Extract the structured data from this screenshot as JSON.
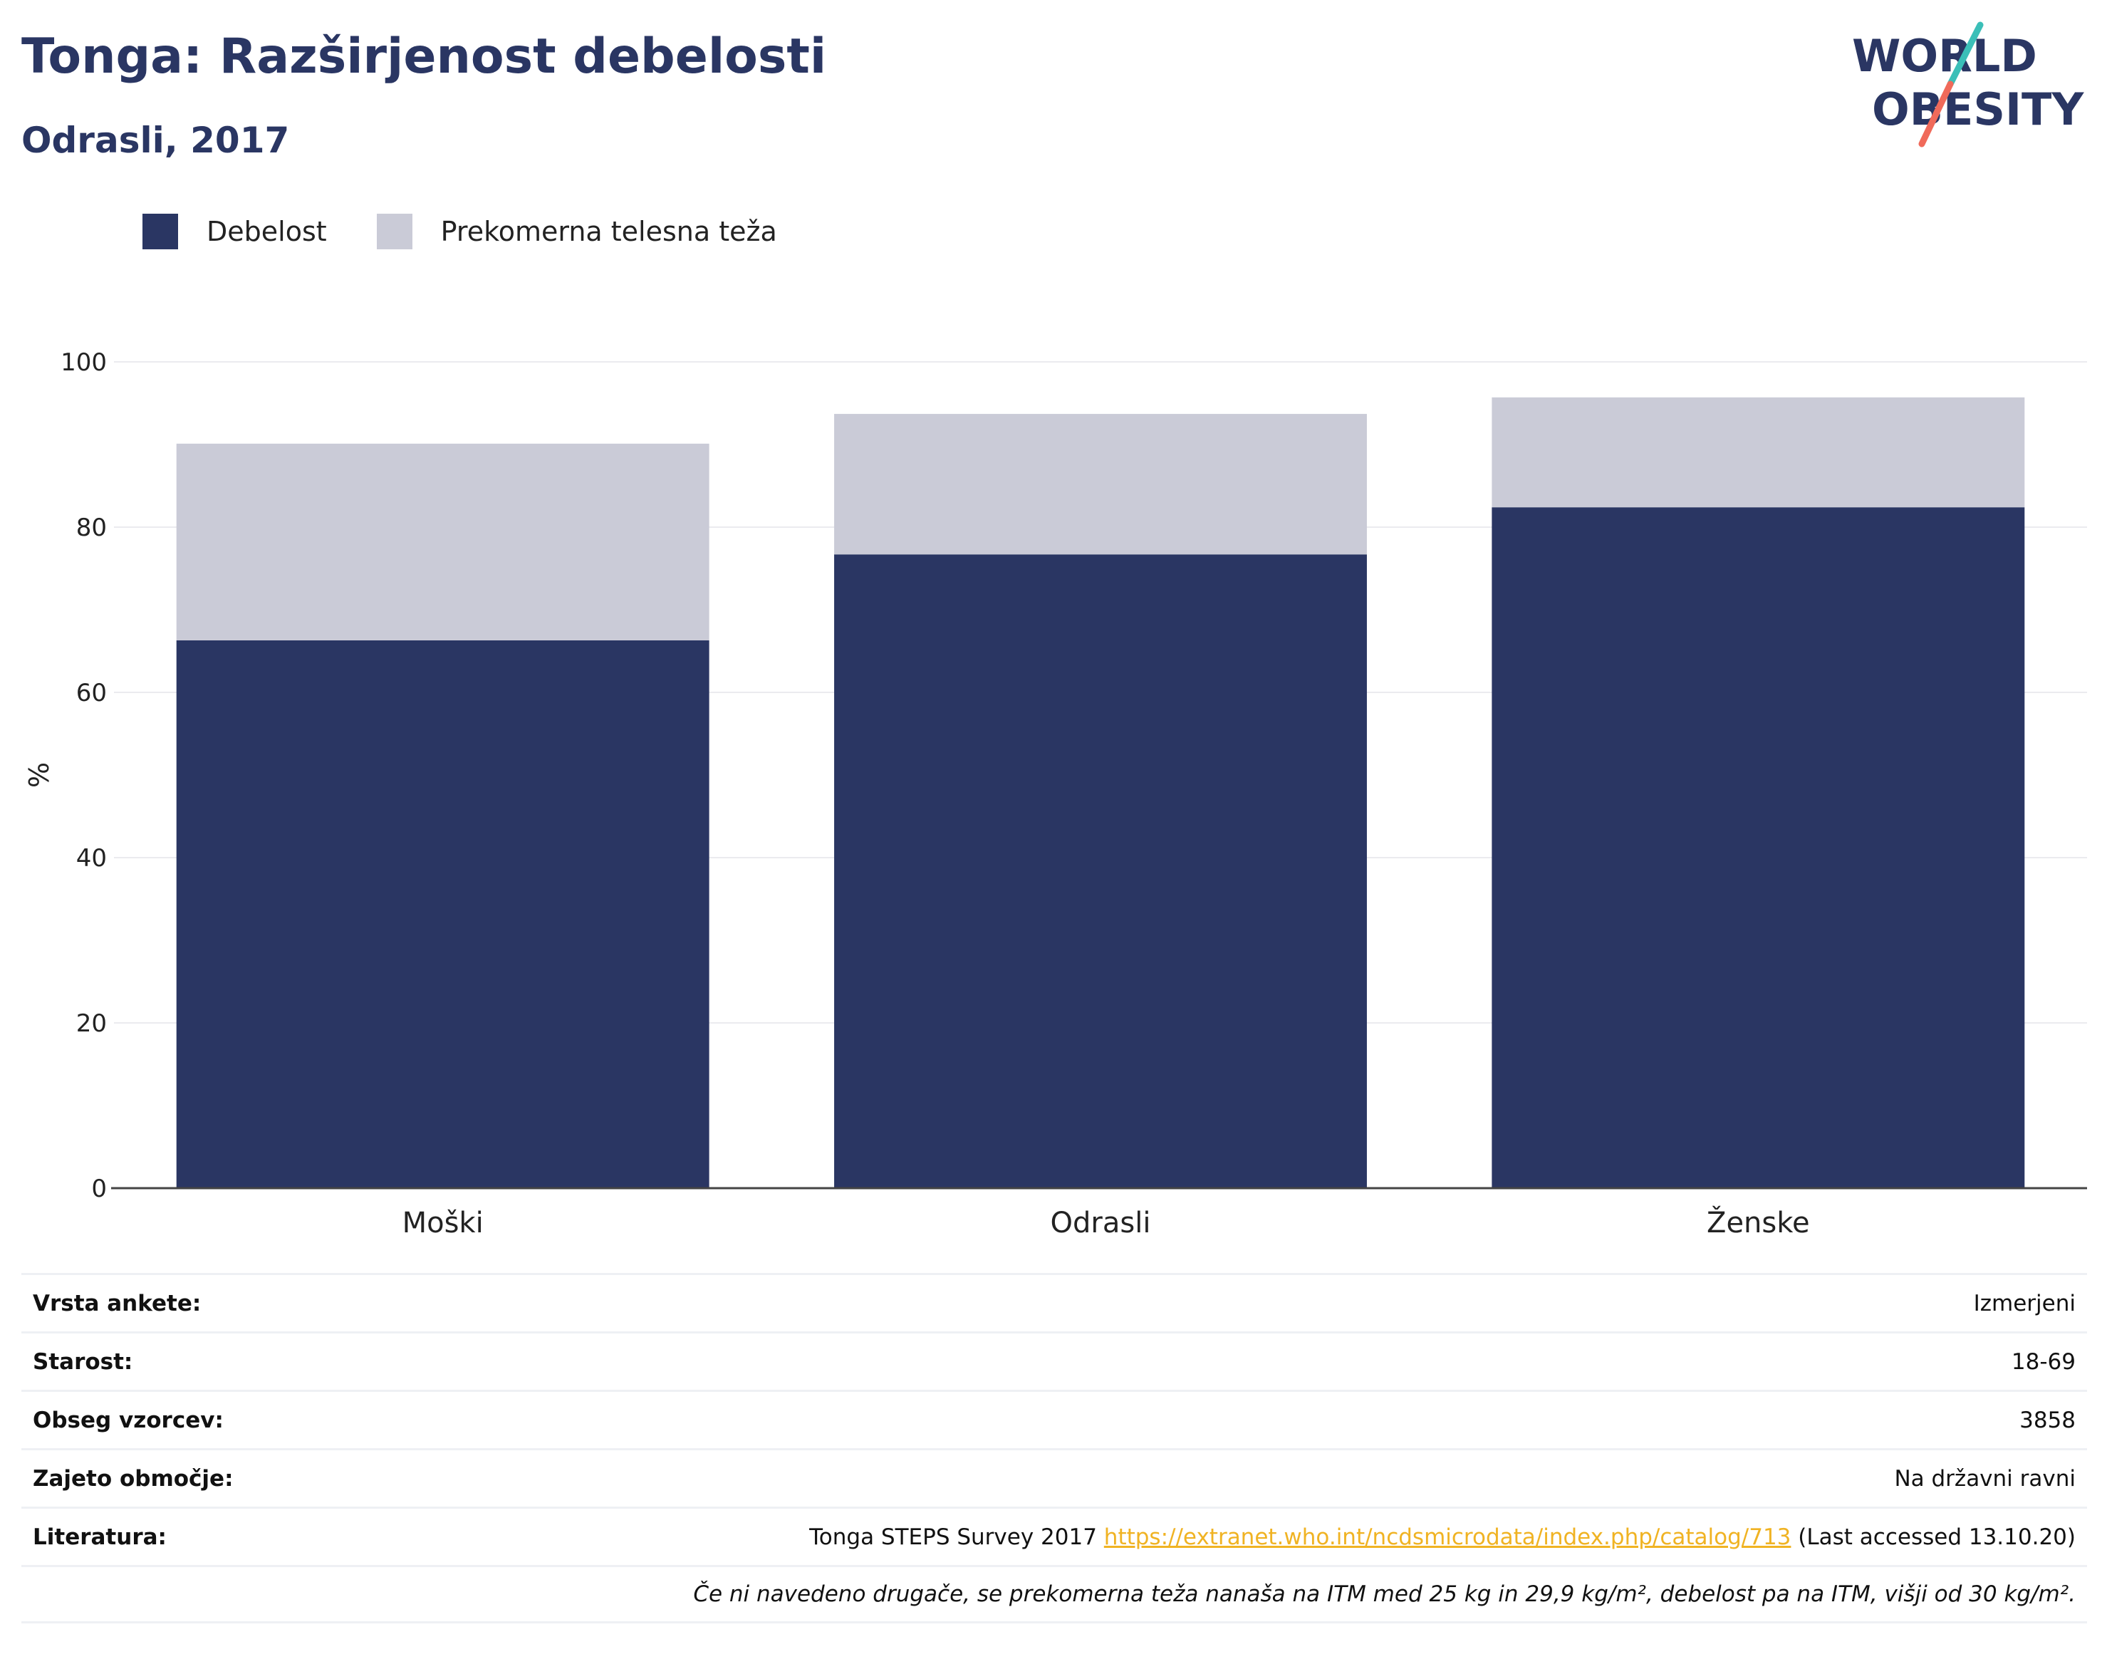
{
  "header": {
    "title": "Tonga: Razširjenost debelosti",
    "subtitle": "Odrasli, 2017"
  },
  "logo": {
    "line1": "WORLD",
    "line2": "OBESITY",
    "colors": {
      "text": "#2a3663",
      "slash_top": "#3bbfb8",
      "slash_bottom": "#f06a5a"
    }
  },
  "legend": [
    {
      "label": "Debelost",
      "color": "#2a3663"
    },
    {
      "label": "Prekomerna telesna teža",
      "color": "#cacbd7"
    }
  ],
  "chart_data": {
    "type": "bar",
    "stacked": true,
    "categories": [
      "Moški",
      "Odrasli",
      "Ženske"
    ],
    "series": [
      {
        "name": "Debelost",
        "color": "#2a3663",
        "values": [
          66.3,
          76.7,
          82.4
        ]
      },
      {
        "name": "Prekomerna telesna teža",
        "color": "#cacbd7",
        "values": [
          23.8,
          17.0,
          13.3
        ]
      }
    ],
    "ylabel": "%",
    "ylim": [
      0,
      100
    ],
    "yticks": [
      0,
      20,
      40,
      60,
      80,
      100
    ],
    "grid": true,
    "legend_position": "top-left"
  },
  "info": {
    "rows": [
      {
        "label": "Vrsta ankete:",
        "value": "Izmerjeni"
      },
      {
        "label": "Starost:",
        "value": "18-69"
      },
      {
        "label": "Obseg vzorcev:",
        "value": "3858"
      },
      {
        "label": "Zajeto območje:",
        "value": "Na državni ravni"
      }
    ],
    "reference": {
      "label": "Literatura:",
      "text_before": "Tonga STEPS Survey 2017 ",
      "link": "https://extranet.who.int/ncdsmicrodata/index.php/catalog/713",
      "text_after": " (Last accessed 13.10.20)"
    },
    "note": "Če ni navedeno drugače, se prekomerna teža nanaša na ITM med 25 kg in 29,9 kg/m², debelost pa na ITM, višji od 30 kg/m²."
  }
}
